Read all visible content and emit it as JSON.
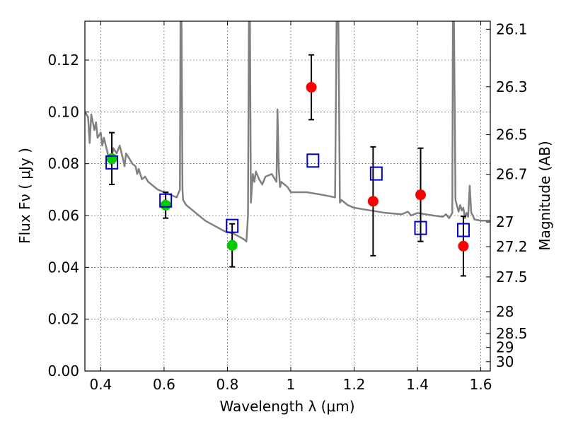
{
  "chart_data": {
    "type": "scatter",
    "xlabel": "Wavelength  λ (μm)",
    "ylabel": "Flux  Fν  ( μJy )",
    "ylabel_right": "Magnitude (AB)",
    "xlim": [
      0.35,
      1.63
    ],
    "ylim": [
      0.0,
      0.135
    ],
    "grid": true,
    "x_ticks": [
      0.4,
      0.6,
      0.8,
      1.0,
      1.2,
      1.4,
      1.6
    ],
    "x_tick_labels": [
      "0.4",
      "0.6",
      "0.8",
      "1",
      "1.2",
      "1.4",
      "1.6"
    ],
    "y_ticks": [
      0.0,
      0.02,
      0.04,
      0.06,
      0.08,
      0.1,
      0.12
    ],
    "y_tick_labels": [
      "0.00",
      "0.02",
      "0.04",
      "0.06",
      "0.08",
      "0.10",
      "0.12"
    ],
    "right_ticks": [
      {
        "flux": 0.1319,
        "label": "26.1"
      },
      {
        "flux": 0.1097,
        "label": "26.3"
      },
      {
        "flux": 0.0912,
        "label": "26.5"
      },
      {
        "flux": 0.0759,
        "label": "26.7"
      },
      {
        "flux": 0.0575,
        "label": "27"
      },
      {
        "flux": 0.048,
        "label": "27.2"
      },
      {
        "flux": 0.0363,
        "label": "27.5"
      },
      {
        "flux": 0.0229,
        "label": "28"
      },
      {
        "flux": 0.0145,
        "label": "28.5"
      },
      {
        "flux": 0.0091,
        "label": "29"
      },
      {
        "flux": 0.0036,
        "label": "30"
      }
    ],
    "series": [
      {
        "kind": "line",
        "color": "#808080",
        "x": [
          0.35,
          0.36,
          0.365,
          0.37,
          0.375,
          0.38,
          0.385,
          0.39,
          0.4,
          0.405,
          0.41,
          0.42,
          0.43,
          0.44,
          0.45,
          0.46,
          0.47,
          0.475,
          0.48,
          0.49,
          0.5,
          0.51,
          0.515,
          0.52,
          0.53,
          0.54,
          0.55,
          0.56,
          0.58,
          0.6,
          0.62,
          0.64,
          0.65,
          0.652,
          0.655,
          0.658,
          0.66,
          0.67,
          0.7,
          0.73,
          0.76,
          0.79,
          0.82,
          0.85,
          0.86,
          0.865,
          0.868,
          0.871,
          0.874,
          0.88,
          0.885,
          0.89,
          0.9,
          0.91,
          0.92,
          0.94,
          0.955,
          0.958,
          0.962,
          0.966,
          0.97,
          0.99,
          1.0,
          1.05,
          1.1,
          1.14,
          1.145,
          1.15,
          1.155,
          1.16,
          1.18,
          1.2,
          1.25,
          1.3,
          1.35,
          1.37,
          1.38,
          1.4,
          1.45,
          1.48,
          1.49,
          1.5,
          1.51,
          1.512,
          1.515,
          1.52,
          1.53,
          1.535,
          1.54,
          1.545,
          1.55,
          1.555,
          1.56,
          1.565,
          1.57,
          1.575,
          1.58,
          1.6,
          1.63
        ],
        "y": [
          0.1,
          0.098,
          0.088,
          0.099,
          0.096,
          0.093,
          0.096,
          0.09,
          0.092,
          0.087,
          0.09,
          0.085,
          0.08,
          0.086,
          0.084,
          0.087,
          0.082,
          0.079,
          0.084,
          0.082,
          0.08,
          0.079,
          0.076,
          0.078,
          0.074,
          0.075,
          0.073,
          0.072,
          0.07,
          0.069,
          0.068,
          0.067,
          0.07,
          0.14,
          0.14,
          0.07,
          0.066,
          0.064,
          0.061,
          0.058,
          0.056,
          0.054,
          0.053,
          0.051,
          0.05,
          0.06,
          0.14,
          0.14,
          0.065,
          0.076,
          0.073,
          0.077,
          0.074,
          0.072,
          0.075,
          0.076,
          0.073,
          0.101,
          0.078,
          0.071,
          0.073,
          0.071,
          0.069,
          0.069,
          0.068,
          0.067,
          0.14,
          0.14,
          0.065,
          0.066,
          0.064,
          0.063,
          0.062,
          0.061,
          0.0605,
          0.0615,
          0.06,
          0.061,
          0.06,
          0.0595,
          0.0605,
          0.059,
          0.061,
          0.14,
          0.14,
          0.066,
          0.0615,
          0.064,
          0.062,
          0.063,
          0.059,
          0.061,
          0.0595,
          0.0715,
          0.061,
          0.06,
          0.0585,
          0.058,
          0.058
        ]
      },
      {
        "kind": "points",
        "marker": "circle",
        "color": "#00cc00",
        "points": [
          {
            "x": 0.435,
            "y": 0.082,
            "err": 0.01
          },
          {
            "x": 0.605,
            "y": 0.064,
            "err": 0.005
          },
          {
            "x": 0.815,
            "y": 0.0485,
            "err": 0.0083
          }
        ]
      },
      {
        "kind": "points",
        "marker": "circle",
        "color": "#ff0000",
        "points": [
          {
            "x": 1.065,
            "y": 0.1095,
            "err": 0.0125
          },
          {
            "x": 1.26,
            "y": 0.0655,
            "err": 0.021
          },
          {
            "x": 1.41,
            "y": 0.068,
            "err": 0.018
          },
          {
            "x": 1.545,
            "y": 0.0482,
            "err": 0.0115
          }
        ]
      },
      {
        "kind": "points",
        "marker": "square",
        "color": "#0000cc",
        "points": [
          {
            "x": 0.435,
            "y": 0.0805
          },
          {
            "x": 0.605,
            "y": 0.0658
          },
          {
            "x": 0.815,
            "y": 0.056
          },
          {
            "x": 1.07,
            "y": 0.0812
          },
          {
            "x": 1.27,
            "y": 0.0762
          },
          {
            "x": 1.41,
            "y": 0.0552
          },
          {
            "x": 1.545,
            "y": 0.0544
          }
        ]
      }
    ]
  }
}
